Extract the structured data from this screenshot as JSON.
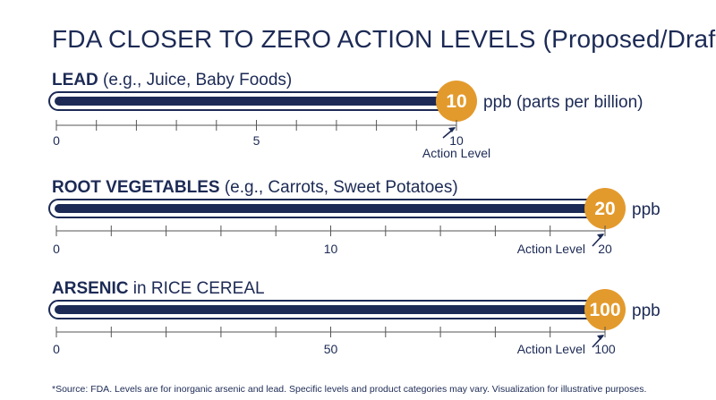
{
  "title": "FDA CLOSER TO ZERO ACTION LEVELS (Proposed/Draft)",
  "footnote": "*Source: FDA. Levels are for inorganic arsenic and lead. Specific levels and product categories may vary. Visualization for illustrative purposes.",
  "colors": {
    "navy": "#1c2a55",
    "accent": "#e39a2c",
    "bar_outline": "#1c2a55",
    "axis": "#555555",
    "background": "#ffffff"
  },
  "chart_data": [
    {
      "type": "bar",
      "category_bold": "LEAD",
      "category_rest": " (e.g., Juice, Baby Foods)",
      "value": 10,
      "value_label": "10",
      "unit_label": "ppb (parts per billion)",
      "xlim": [
        0,
        10
      ],
      "ticks": [
        0,
        5,
        10
      ],
      "tick_labels": [
        "0",
        "5",
        "10"
      ],
      "minor_ticks": 10,
      "annotation": "Action Level",
      "annotation_position": "below"
    },
    {
      "type": "bar",
      "category_bold": "ROOT VEGETABLES",
      "category_rest": " (e.g., Carrots, Sweet Potatoes)",
      "value": 20,
      "value_label": "20",
      "unit_label": "ppb",
      "xlim": [
        0,
        20
      ],
      "ticks": [
        0,
        10,
        20
      ],
      "tick_labels": [
        "0",
        "10",
        "20"
      ],
      "minor_ticks": 10,
      "annotation": "Action Level",
      "annotation_position": "left"
    },
    {
      "type": "bar",
      "category_bold": "ARSENIC",
      "category_rest": " in RICE CEREAL",
      "value": 100,
      "value_label": "100",
      "unit_label": "ppb",
      "xlim": [
        0,
        100
      ],
      "ticks": [
        0,
        50,
        100
      ],
      "tick_labels": [
        "0",
        "50",
        "100"
      ],
      "minor_ticks": 10,
      "annotation": "Action Level",
      "annotation_position": "left"
    }
  ]
}
